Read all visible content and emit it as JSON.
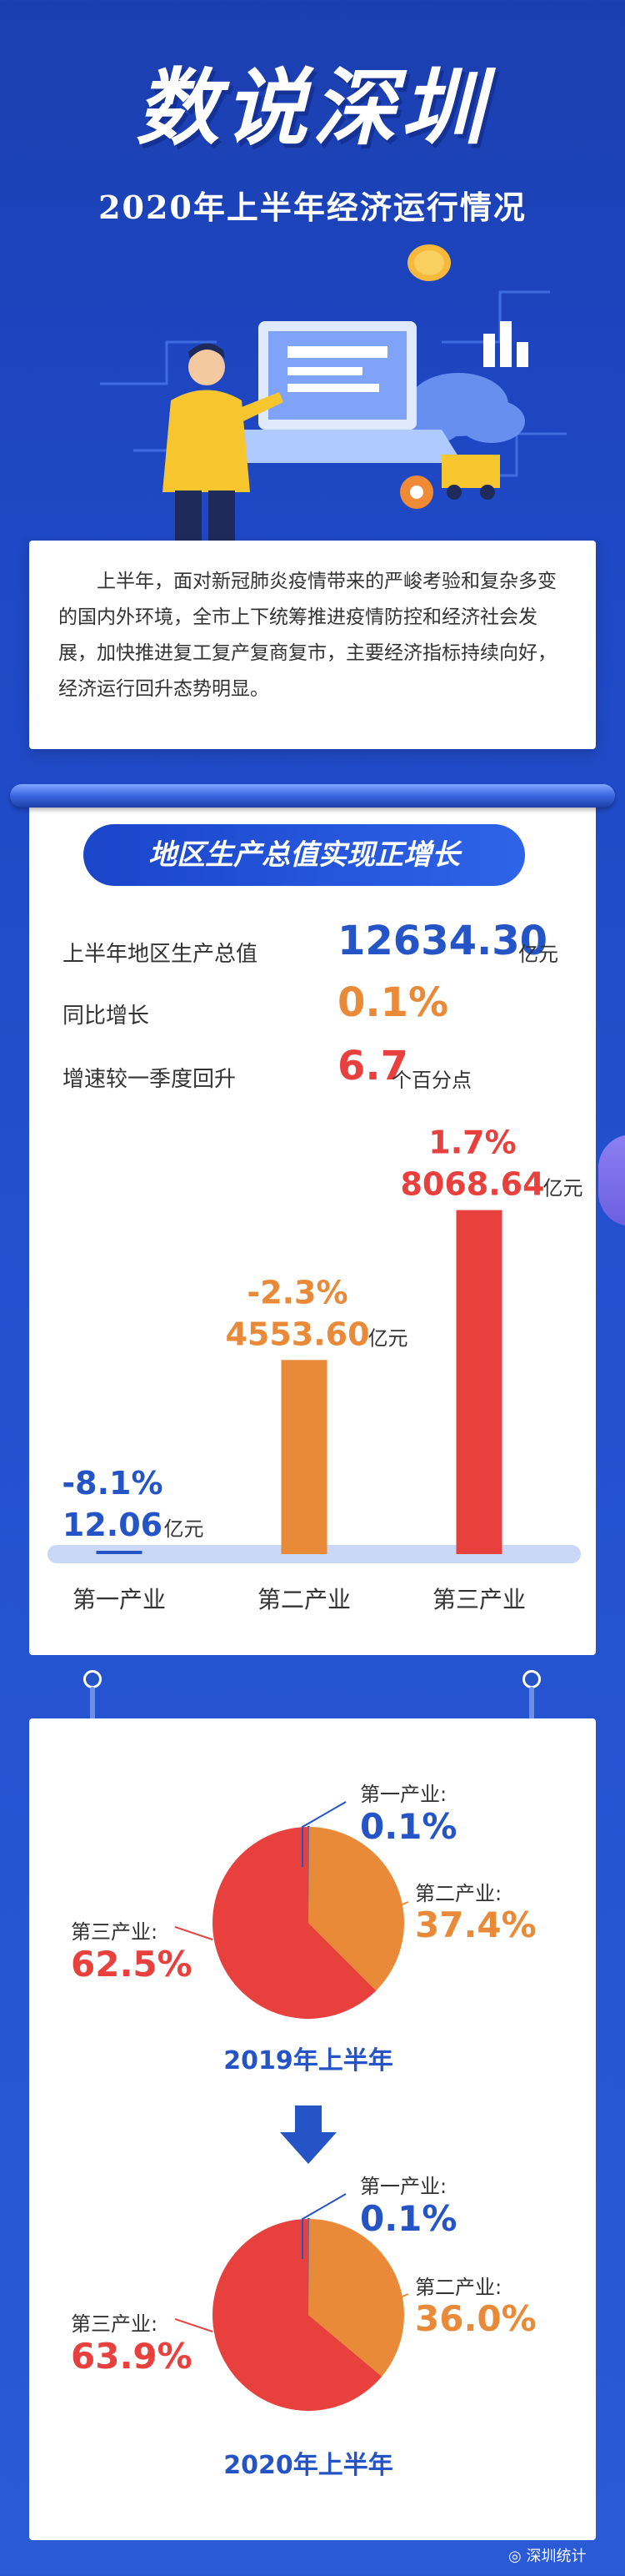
{
  "header": {
    "title": "数说深圳",
    "subtitle": "2020年上半年经济运行情况"
  },
  "intro": {
    "text": "上半年，面对新冠肺炎疫情带来的严峻考验和复杂多变的国内外环境，全市上下统筹推进疫情防控和经济社会发展，加快推进复工复产复商复市，主要经济指标持续向好，经济运行回升态势明显。"
  },
  "gdp_section": {
    "title": "地区生产总值实现正增长",
    "rows": [
      {
        "label": "上半年地区生产总值",
        "value": "12634.30",
        "unit": "亿元"
      },
      {
        "label": "同比增长",
        "value": "0.1%",
        "unit": ""
      },
      {
        "label": "增速较一季度回升",
        "value": "6.7",
        "unit": "个百分点"
      }
    ]
  },
  "colors": {
    "primary_blue": "#2454c6",
    "orange": "#e98a39",
    "red": "#e8403d",
    "bar_base": "#c9d8f6"
  },
  "chart_data": [
    {
      "type": "bar",
      "categories": [
        "第一产业",
        "第二产业",
        "第三产业"
      ],
      "series": [
        {
          "values": [
            12.06,
            4553.6,
            8068.64
          ]
        }
      ],
      "value_labels": [
        "12.06",
        "4553.60",
        "8068.64"
      ],
      "value_unit": "亿元",
      "growth_labels": [
        "-8.1%",
        "-2.3%",
        "1.7%"
      ],
      "bar_colors": [
        "#2454c6",
        "#e98a39",
        "#e8403d"
      ],
      "ylim": [
        0,
        9000
      ],
      "grid": false
    },
    {
      "type": "pie",
      "caption": "2019年上半年",
      "slices": [
        {
          "label": "第一产业:",
          "value": 0.1,
          "display": "0.1%",
          "color": "#2454c6"
        },
        {
          "label": "第二产业:",
          "value": 37.4,
          "display": "37.4%",
          "color": "#e98a39"
        },
        {
          "label": "第三产业:",
          "value": 62.5,
          "display": "62.5%",
          "color": "#e8403d"
        }
      ]
    },
    {
      "type": "pie",
      "caption": "2020年上半年",
      "slices": [
        {
          "label": "第一产业:",
          "value": 0.1,
          "display": "0.1%",
          "color": "#2454c6"
        },
        {
          "label": "第二产业:",
          "value": 36.0,
          "display": "36.0%",
          "color": "#e98a39"
        },
        {
          "label": "第三产业:",
          "value": 63.9,
          "display": "63.9%",
          "color": "#e8403d"
        }
      ]
    }
  ],
  "footer": {
    "icon": "wechat-icon",
    "source": "深圳统计"
  }
}
